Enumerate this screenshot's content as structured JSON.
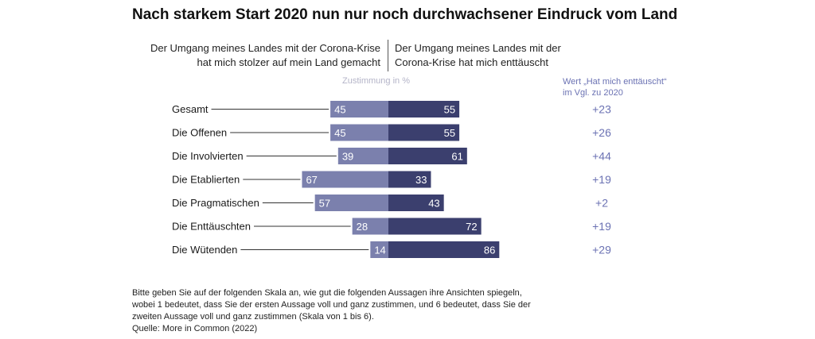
{
  "title": "Nach starkem Start 2020 nun nur noch durchwachsener Eindruck vom Land",
  "header": {
    "left_line1": "Der Umgang meines Landes mit der Corona-Krise",
    "left_line2": "hat mich stolzer auf mein Land gemacht",
    "right_line1": "Der Umgang meines Landes mit der",
    "right_line2": "Corona-Krise hat mich enttäuscht"
  },
  "subhead": "Zustimmung in %",
  "delta_header": {
    "line1": "Wert „Hat mich enttäuscht“",
    "line2": "im Vgl. zu 2020"
  },
  "footnote": {
    "line1": "Bitte geben Sie auf der folgenden Skala an, wie gut die folgenden Aussagen ihre Ansichten spiegeln,",
    "line2": "wobei 1 bedeutet, dass Sie der ersten Aussage voll und ganz zustimmen, und 6 bedeutet, dass Sie der",
    "line3": "zweiten Aussage voll und ganz zustimmen (Skala von 1 bis 6).",
    "source": "Quelle: More in Common (2022)"
  },
  "colors": {
    "left_bar": "#7b80ad",
    "right_bar": "#3b3f6e",
    "delta_text": "#6b72b3",
    "leader_line": "#333333"
  },
  "chart_data": {
    "type": "bar",
    "orientation": "horizontal-diverging",
    "title": "Nach starkem Start 2020 nun nur noch durchwachsener Eindruck vom Land",
    "categories": [
      "Gesamt",
      "Die Offenen",
      "Die Involvierten",
      "Die Etablierten",
      "Die Pragmatischen",
      "Die Enttäuschten",
      "Die Wütenden"
    ],
    "series": [
      {
        "name": "Der Umgang meines Landes mit der Corona-Krise hat mich stolzer auf mein Land gemacht",
        "values": [
          45,
          45,
          39,
          67,
          57,
          28,
          14
        ]
      },
      {
        "name": "Der Umgang meines Landes mit der Corona-Krise hat mich enttäuscht",
        "values": [
          55,
          55,
          61,
          33,
          43,
          72,
          86
        ]
      }
    ],
    "delta_vs_2020": [
      "+23",
      "+26",
      "+44",
      "+19",
      "+2",
      "+19",
      "+29"
    ],
    "unit": "Zustimmung in %"
  }
}
